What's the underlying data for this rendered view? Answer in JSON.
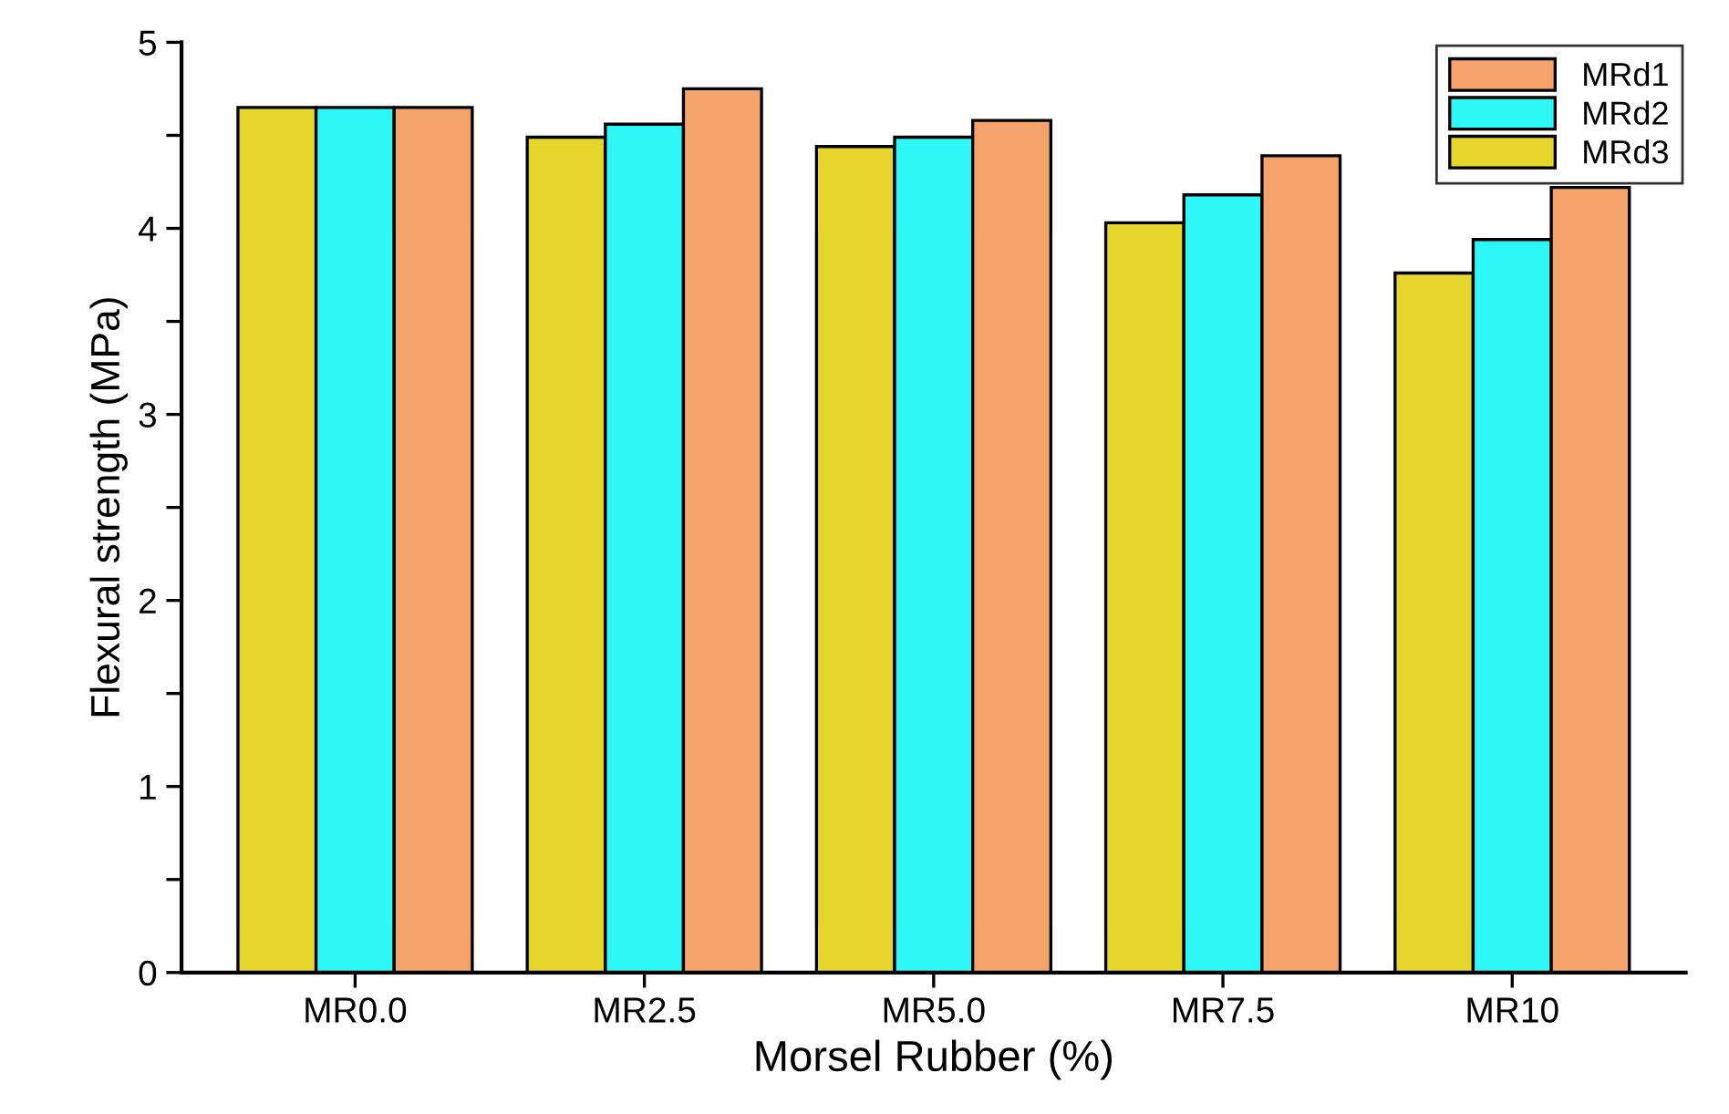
{
  "chart_data": {
    "type": "bar",
    "xlabel": "Morsel Rubber (%)",
    "ylabel": "Flexural strength (MPa)",
    "categories": [
      "MR0.0",
      "MR2.5",
      "MR5.0",
      "MR7.5",
      "MR10"
    ],
    "series": [
      {
        "name": "MRd3",
        "color": "#e6d52a",
        "values": [
          4.65,
          4.49,
          4.44,
          4.03,
          3.76
        ]
      },
      {
        "name": "MRd2",
        "color": "#2ef7f7",
        "values": [
          4.65,
          4.56,
          4.49,
          4.18,
          3.94
        ]
      },
      {
        "name": "MRd1",
        "color": "#f4a46a",
        "values": [
          4.65,
          4.75,
          4.58,
          4.39,
          4.22
        ]
      }
    ],
    "ylim": [
      0,
      5
    ],
    "yticks": [
      0,
      {
        "value": 0.5,
        "label": null
      },
      1,
      {
        "value": 1.5,
        "label": null
      },
      2,
      {
        "value": 2.5,
        "label": null
      },
      3,
      {
        "value": 3.5,
        "label": null
      },
      4,
      {
        "value": 4.5,
        "label": null
      },
      5
    ],
    "grid": false,
    "legend": "top right"
  }
}
